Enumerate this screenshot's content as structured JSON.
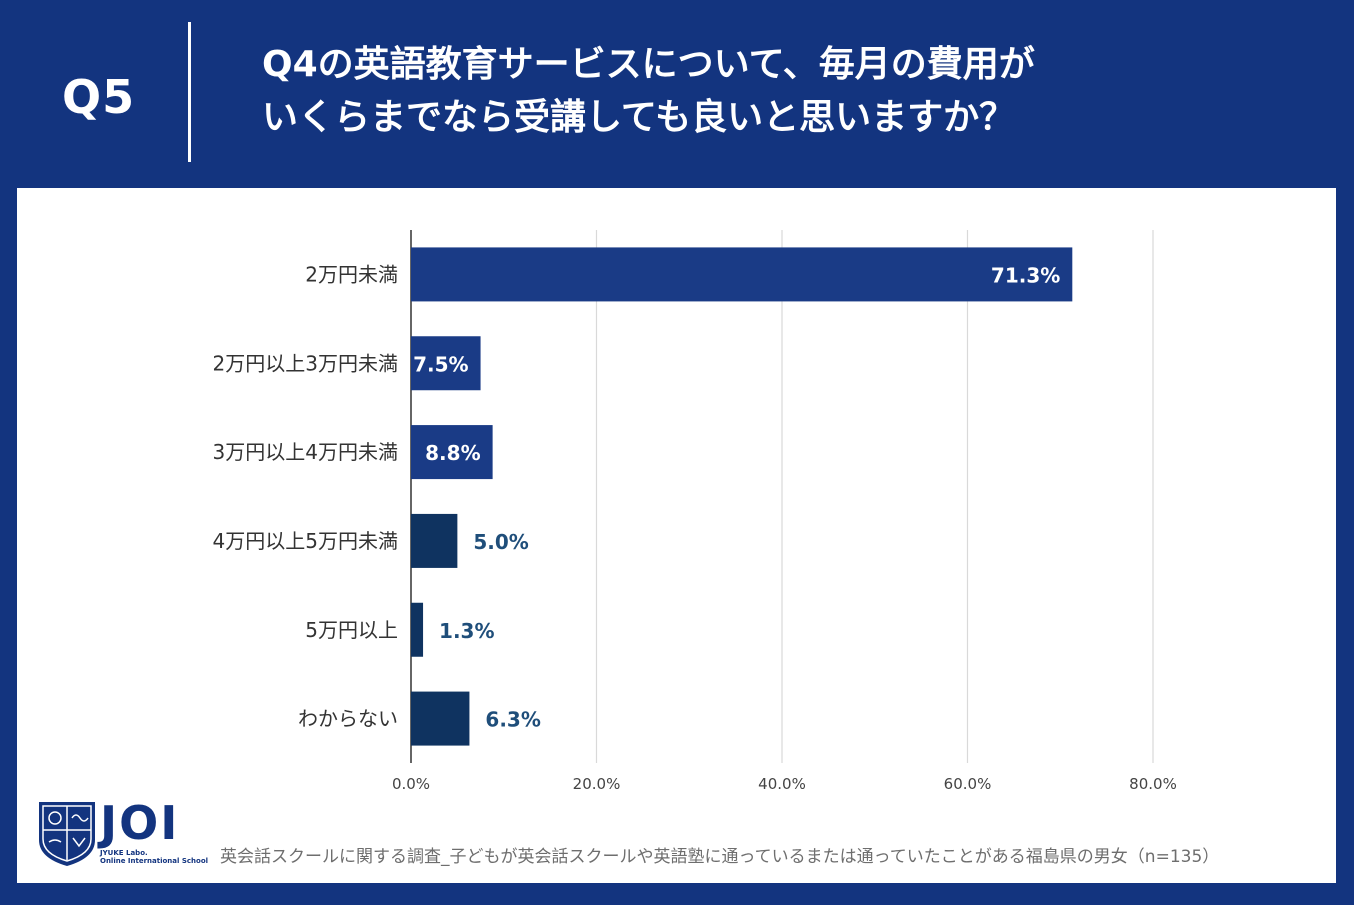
{
  "header": {
    "qnum": "Q5",
    "question_line1": "Q4の英語教育サービスについて、毎月の費用が",
    "question_line2": "いくらまでなら受講しても良いと思いますか？"
  },
  "chart_data": {
    "type": "bar",
    "orientation": "horizontal",
    "categories": [
      "2万円未満",
      "2万円以上3万円未満",
      "3万円以上4万円未満",
      "4万円以上5万円未満",
      "5万円以上",
      "わからない"
    ],
    "values": [
      71.3,
      7.5,
      8.8,
      5.0,
      1.3,
      6.3
    ],
    "value_labels": [
      "71.3%",
      "7.5%",
      "8.8%",
      "5.0%",
      "1.3%",
      "6.3%"
    ],
    "bar_colors": [
      "#1a3b86",
      "#1a3b86",
      "#1a3b86",
      "#0f3360",
      "#0f3360",
      "#0f3360"
    ],
    "xlim": [
      0,
      80
    ],
    "xticks": [
      0,
      20,
      40,
      60,
      80
    ],
    "xtick_labels": [
      "0.0%",
      "20.0%",
      "40.0%",
      "60.0%",
      "80.0%"
    ],
    "grid": true,
    "title": "",
    "xlabel": "",
    "ylabel": ""
  },
  "footnote": "英会話スクールに関する調査_子どもが英会話スクールや英語塾に通っているまたは通っていたことがある福島県の男女（n=135）",
  "logo": {
    "name": "JOI",
    "sub1": "JYUKE Labo.",
    "sub2": "Online International School"
  },
  "colors": {
    "background": "#13347f",
    "bar_inside_label": "#ffffff",
    "bar_outside_label": "#1f4e7a",
    "grid": "#d9d9d9"
  }
}
